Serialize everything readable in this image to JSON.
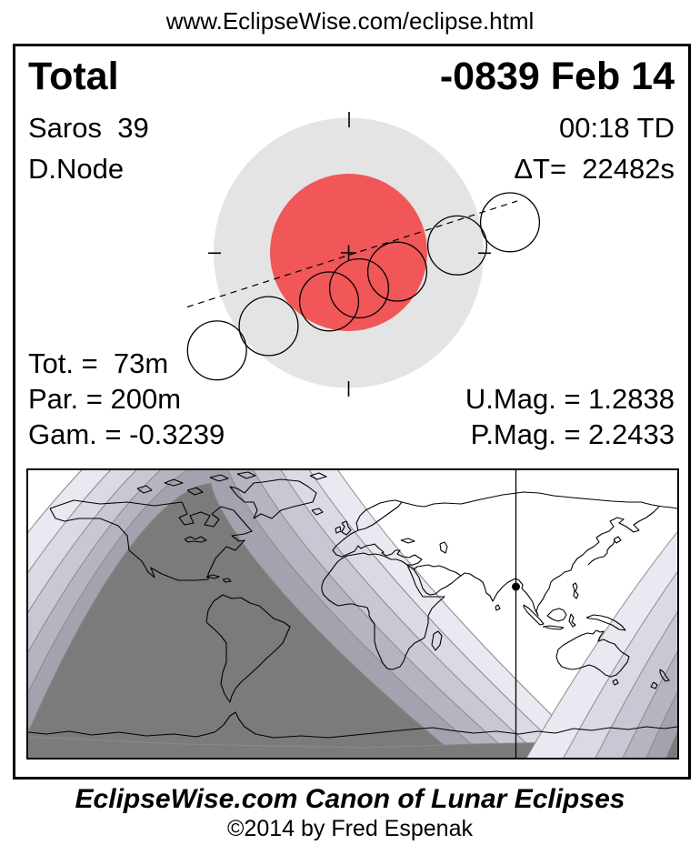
{
  "page_title": "www.EclipseWise.com/eclipse.html",
  "header": {
    "eclipse_type": "Total",
    "saros": "Saros  39",
    "node": "D.Node",
    "date": "-0839 Feb 14",
    "time": "00:18 TD",
    "delta_t": "ΔT=  22482s"
  },
  "stats": {
    "totality": "Tot. =  73m",
    "partiality": "Par. = 200m",
    "gamma": "Gam. = -0.3239",
    "umbral_magnitude": "U.Mag. = 1.2838",
    "penumbral_magnitude": "P.Mag. = 2.2433"
  },
  "footer": {
    "title": "EclipseWise.com Canon of Lunar Eclipses",
    "copyright": "©2014 by Fred Espenak"
  },
  "diagram": {
    "umbra_color": "#f15658",
    "penumbra_color": "#e4e4e4",
    "moon_contact_count": 7
  },
  "map": {
    "not_visible_color": "#7b7b7b",
    "visible_color": "#ffffff",
    "band_colors": [
      "#a3a3af",
      "#b5b5c1",
      "#c8c8d4",
      "#dadae4",
      "#e9e9f1"
    ],
    "band_edge_color": "#8a8a8a"
  }
}
